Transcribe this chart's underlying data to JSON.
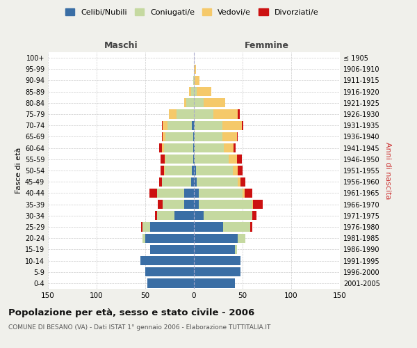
{
  "age_groups": [
    "0-4",
    "5-9",
    "10-14",
    "15-19",
    "20-24",
    "25-29",
    "30-34",
    "35-39",
    "40-44",
    "45-49",
    "50-54",
    "55-59",
    "60-64",
    "65-69",
    "70-74",
    "75-79",
    "80-84",
    "85-89",
    "90-94",
    "95-99",
    "100+"
  ],
  "birth_years": [
    "2001-2005",
    "1996-2000",
    "1991-1995",
    "1986-1990",
    "1981-1985",
    "1976-1980",
    "1971-1975",
    "1966-1970",
    "1961-1965",
    "1956-1960",
    "1951-1955",
    "1946-1950",
    "1941-1945",
    "1936-1940",
    "1931-1935",
    "1926-1930",
    "1921-1925",
    "1916-1920",
    "1911-1915",
    "1906-1910",
    "≤ 1905"
  ],
  "maschi": {
    "celibi": [
      48,
      50,
      55,
      45,
      50,
      45,
      20,
      10,
      10,
      3,
      2,
      1,
      1,
      1,
      2,
      0,
      0,
      0,
      0,
      0,
      0
    ],
    "coniugati": [
      0,
      0,
      0,
      0,
      3,
      8,
      18,
      22,
      28,
      30,
      28,
      28,
      30,
      28,
      25,
      18,
      8,
      3,
      1,
      0,
      0
    ],
    "vedovi": [
      0,
      0,
      0,
      0,
      0,
      0,
      0,
      0,
      0,
      0,
      1,
      1,
      2,
      3,
      5,
      8,
      2,
      2,
      0,
      0,
      0
    ],
    "divorziati": [
      0,
      0,
      0,
      0,
      0,
      1,
      2,
      5,
      8,
      3,
      3,
      4,
      3,
      1,
      1,
      0,
      0,
      0,
      0,
      0,
      0
    ]
  },
  "femmine": {
    "nubili": [
      42,
      48,
      48,
      42,
      45,
      30,
      10,
      5,
      5,
      3,
      2,
      1,
      1,
      1,
      1,
      0,
      0,
      0,
      0,
      0,
      0
    ],
    "coniugate": [
      0,
      0,
      0,
      2,
      8,
      28,
      50,
      55,
      45,
      42,
      38,
      35,
      30,
      28,
      28,
      20,
      10,
      3,
      1,
      0,
      0
    ],
    "vedove": [
      0,
      0,
      0,
      0,
      0,
      0,
      0,
      1,
      2,
      3,
      5,
      8,
      10,
      15,
      20,
      25,
      22,
      15,
      5,
      2,
      0
    ],
    "divorziate": [
      0,
      0,
      0,
      0,
      0,
      2,
      4,
      10,
      8,
      5,
      5,
      5,
      2,
      1,
      2,
      2,
      0,
      0,
      0,
      0,
      0
    ]
  },
  "colors": {
    "celibi_nubili": "#3a6ea5",
    "coniugati": "#c5d9a0",
    "vedovi": "#f5c96a",
    "divorziati": "#cc1111"
  },
  "xlim": 150,
  "title": "Popolazione per età, sesso e stato civile - 2006",
  "subtitle": "COMUNE DI BESANO (VA) - Dati ISTAT 1° gennaio 2006 - Elaborazione TUTTITALIA.IT",
  "ylabel_left": "Fasce di età",
  "ylabel_right": "Anni di nascita",
  "xlabel_maschi": "Maschi",
  "xlabel_femmine": "Femmine",
  "bg_color": "#f0f0eb",
  "plot_bg": "#ffffff"
}
